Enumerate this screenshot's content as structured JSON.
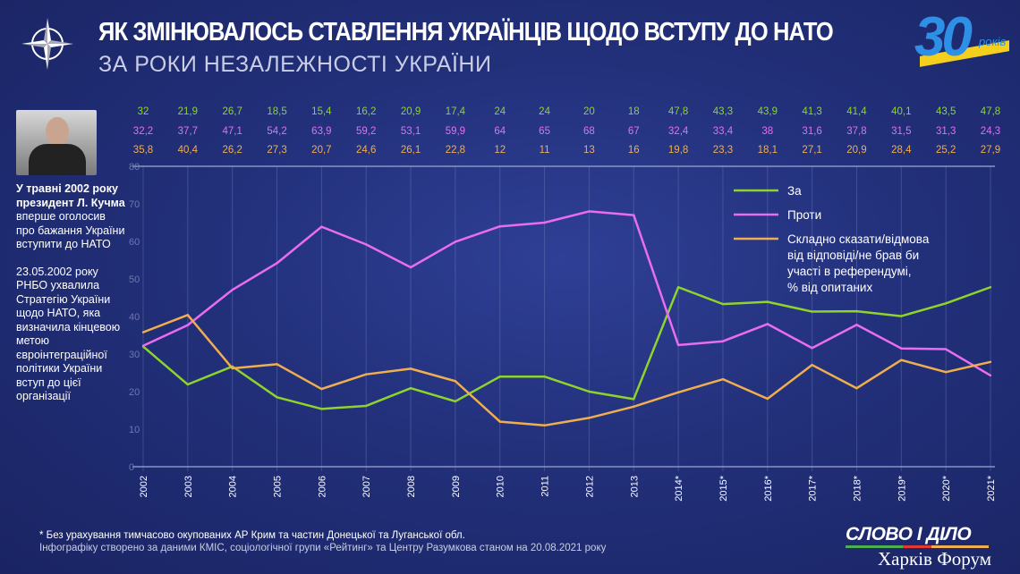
{
  "header": {
    "title": "ЯК ЗМІНЮВАЛОСЬ СТАВЛЕННЯ УКРАЇНЦІВ ЩОДО ВСТУПУ ДО НАТО",
    "subtitle": "ЗА РОКИ НЕЗАЛЕЖНОСТІ УКРАЇНИ",
    "logo_number": "30",
    "logo_word": "років"
  },
  "sidebar": {
    "bold": "У травні 2002 року президент Л. Кучма",
    "text1": " вперше оголосив про бажання України вступити до НАТО",
    "text2": "23.05.2002 року РНБО ухвалила Стратегію України щодо НАТО, яка визначила кінцевою метою євроінтеграційної політики України вступ до цієї організації"
  },
  "footer": {
    "note": "* Без урахування тимчасово окупованих АР Крим та частин Донецької та Луганської обл.",
    "source": "Інфографіку створено за даними КМІС, соціологічної групи «Рейтинг» та Центру Разумкова станом на 20.08.2021 року",
    "brand_top": "СЛОВО І ДІЛО",
    "brand_bottom": "Харків Форум"
  },
  "colors": {
    "za": "#8ed42a",
    "proty": "#ea6cf0",
    "skladno": "#f0ae4e",
    "background": "#22307a"
  },
  "chart_data": {
    "type": "line",
    "categories": [
      "2002",
      "2003",
      "2004",
      "2005",
      "2006",
      "2007",
      "2008",
      "2009",
      "2010",
      "2011",
      "2012",
      "2013",
      "2014*",
      "2015*",
      "2016*",
      "2017*",
      "2018*",
      "2019*",
      "2020*",
      "2021*"
    ],
    "ylim": [
      0,
      80
    ],
    "yticks": [
      0,
      10,
      20,
      30,
      40,
      50,
      60,
      70,
      80
    ],
    "grid": "vertical",
    "legend": "top-right",
    "series": [
      {
        "name": "За",
        "color": "#8ed42a",
        "labels": [
          "32",
          "21,9",
          "26,7",
          "18,5",
          "15,4",
          "16,2",
          "20,9",
          "17,4",
          "24",
          "24",
          "20",
          "18",
          "47,8",
          "43,3",
          "43,9",
          "41,3",
          "41,4",
          "40,1",
          "43,5",
          "47,8"
        ],
        "values": [
          32,
          21.9,
          26.7,
          18.5,
          15.4,
          16.2,
          20.9,
          17.4,
          24,
          24,
          20,
          18,
          47.8,
          43.3,
          43.9,
          41.3,
          41.4,
          40.1,
          43.5,
          47.8
        ]
      },
      {
        "name": "Проти",
        "color": "#ea6cf0",
        "labels": [
          "32,2",
          "37,7",
          "47,1",
          "54,2",
          "63,9",
          "59,2",
          "53,1",
          "59,9",
          "64",
          "65",
          "68",
          "67",
          "32,4",
          "33,4",
          "38",
          "31,6",
          "37,8",
          "31,5",
          "31,3",
          "24,3"
        ],
        "values": [
          32.2,
          37.7,
          47.1,
          54.2,
          63.9,
          59.2,
          53.1,
          59.9,
          64,
          65,
          68,
          67,
          32.4,
          33.4,
          38,
          31.6,
          37.8,
          31.5,
          31.3,
          24.3
        ]
      },
      {
        "name": "Складно сказати/відмова від відповіді/не брав би участі в референдумі, % від опитаних",
        "legend_lines": [
          "Складно сказати/відмова",
          "від відповіді/не брав би",
          "участі в референдумі,",
          "% від опитаних"
        ],
        "color": "#f0ae4e",
        "labels": [
          "35,8",
          "40,4",
          "26,2",
          "27,3",
          "20,7",
          "24,6",
          "26,1",
          "22,8",
          "12",
          "11",
          "13",
          "16",
          "19,8",
          "23,3",
          "18,1",
          "27,1",
          "20,9",
          "28,4",
          "25,2",
          "27,9"
        ],
        "values": [
          35.8,
          40.4,
          26.2,
          27.3,
          20.7,
          24.6,
          26.1,
          22.8,
          12,
          11,
          13,
          16,
          19.8,
          23.3,
          18.1,
          27.1,
          20.9,
          28.4,
          25.2,
          27.9
        ]
      }
    ]
  }
}
